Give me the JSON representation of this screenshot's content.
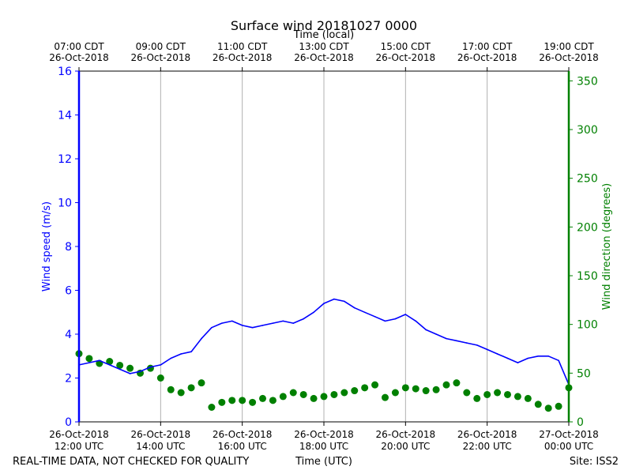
{
  "chart_data": {
    "type": "line",
    "title": "Surface wind 20181027 0000",
    "top_axis_label": "Time (local)",
    "xlabel": "Time (UTC)",
    "ylabel": "Wind speed (m/s)",
    "y2label": "Wind direction (degrees)",
    "footer_left": "REAL-TIME DATA, NOT CHECKED FOR QUALITY",
    "footer_right": "Site: ISS2",
    "x_range_hours_utc": [
      12,
      24
    ],
    "ylim": [
      0,
      16
    ],
    "y2lim": [
      0,
      360
    ],
    "y_ticks": [
      0,
      2,
      4,
      6,
      8,
      10,
      12,
      14,
      16
    ],
    "y2_ticks": [
      0,
      50,
      100,
      150,
      200,
      250,
      300,
      350
    ],
    "grid_x": true,
    "colors": {
      "speed": "#0000ff",
      "direction": "#008000",
      "grid": "#b0b0b0",
      "axis": "#000000"
    },
    "bottom_ticks": [
      {
        "hour": 12,
        "date": "26-Oct-2018",
        "time": "12:00 UTC"
      },
      {
        "hour": 14,
        "date": "26-Oct-2018",
        "time": "14:00 UTC"
      },
      {
        "hour": 16,
        "date": "26-Oct-2018",
        "time": "16:00 UTC"
      },
      {
        "hour": 18,
        "date": "26-Oct-2018",
        "time": "18:00 UTC"
      },
      {
        "hour": 20,
        "date": "26-Oct-2018",
        "time": "20:00 UTC"
      },
      {
        "hour": 22,
        "date": "26-Oct-2018",
        "time": "22:00 UTC"
      },
      {
        "hour": 24,
        "date": "27-Oct-2018",
        "time": "00:00 UTC"
      }
    ],
    "top_ticks": [
      {
        "hour": 12,
        "time": "07:00 CDT",
        "date": "26-Oct-2018"
      },
      {
        "hour": 14,
        "time": "09:00 CDT",
        "date": "26-Oct-2018"
      },
      {
        "hour": 16,
        "time": "11:00 CDT",
        "date": "26-Oct-2018"
      },
      {
        "hour": 18,
        "time": "13:00 CDT",
        "date": "26-Oct-2018"
      },
      {
        "hour": 20,
        "time": "15:00 CDT",
        "date": "26-Oct-2018"
      },
      {
        "hour": 22,
        "time": "17:00 CDT",
        "date": "26-Oct-2018"
      },
      {
        "hour": 24,
        "time": "19:00 CDT",
        "date": "26-Oct-2018"
      }
    ],
    "series": [
      {
        "name": "Wind speed",
        "axis": "left",
        "style": "line",
        "x": [
          12.0,
          12.25,
          12.5,
          12.75,
          13.0,
          13.25,
          13.5,
          13.75,
          14.0,
          14.25,
          14.5,
          14.75,
          15.0,
          15.25,
          15.5,
          15.75,
          16.0,
          16.25,
          16.5,
          16.75,
          17.0,
          17.25,
          17.5,
          17.75,
          18.0,
          18.25,
          18.5,
          18.75,
          19.0,
          19.25,
          19.5,
          19.75,
          20.0,
          20.25,
          20.5,
          20.75,
          21.0,
          21.25,
          21.5,
          21.75,
          22.0,
          22.25,
          22.5,
          22.75,
          23.0,
          23.25,
          23.5,
          23.75,
          24.0
        ],
        "values": [
          2.6,
          2.7,
          2.8,
          2.6,
          2.4,
          2.2,
          2.3,
          2.5,
          2.6,
          2.9,
          3.1,
          3.2,
          3.8,
          4.3,
          4.5,
          4.6,
          4.4,
          4.3,
          4.4,
          4.5,
          4.6,
          4.5,
          4.7,
          5.0,
          5.4,
          5.6,
          5.5,
          5.2,
          5.0,
          4.8,
          4.6,
          4.7,
          4.9,
          4.6,
          4.2,
          4.0,
          3.8,
          3.7,
          3.6,
          3.5,
          3.3,
          3.1,
          2.9,
          2.7,
          2.9,
          3.0,
          3.0,
          2.8,
          1.7
        ]
      },
      {
        "name": "Wind direction",
        "axis": "right",
        "style": "markers",
        "x": [
          12.0,
          12.25,
          12.5,
          12.75,
          13.0,
          13.25,
          13.5,
          13.75,
          14.0,
          14.25,
          14.5,
          14.75,
          15.0,
          15.25,
          15.5,
          15.75,
          16.0,
          16.25,
          16.5,
          16.75,
          17.0,
          17.25,
          17.5,
          17.75,
          18.0,
          18.25,
          18.5,
          18.75,
          19.0,
          19.25,
          19.5,
          19.75,
          20.0,
          20.25,
          20.5,
          20.75,
          21.0,
          21.25,
          21.5,
          21.75,
          22.0,
          22.25,
          22.5,
          22.75,
          23.0,
          23.25,
          23.5,
          23.75,
          24.0
        ],
        "values": [
          70,
          65,
          60,
          62,
          58,
          55,
          50,
          55,
          45,
          33,
          30,
          35,
          40,
          15,
          20,
          22,
          22,
          20,
          24,
          22,
          26,
          30,
          28,
          24,
          26,
          28,
          30,
          32,
          35,
          38,
          25,
          30,
          35,
          34,
          32,
          33,
          38,
          40,
          30,
          24,
          28,
          30,
          28,
          26,
          24,
          18,
          14,
          16,
          35
        ]
      }
    ]
  }
}
